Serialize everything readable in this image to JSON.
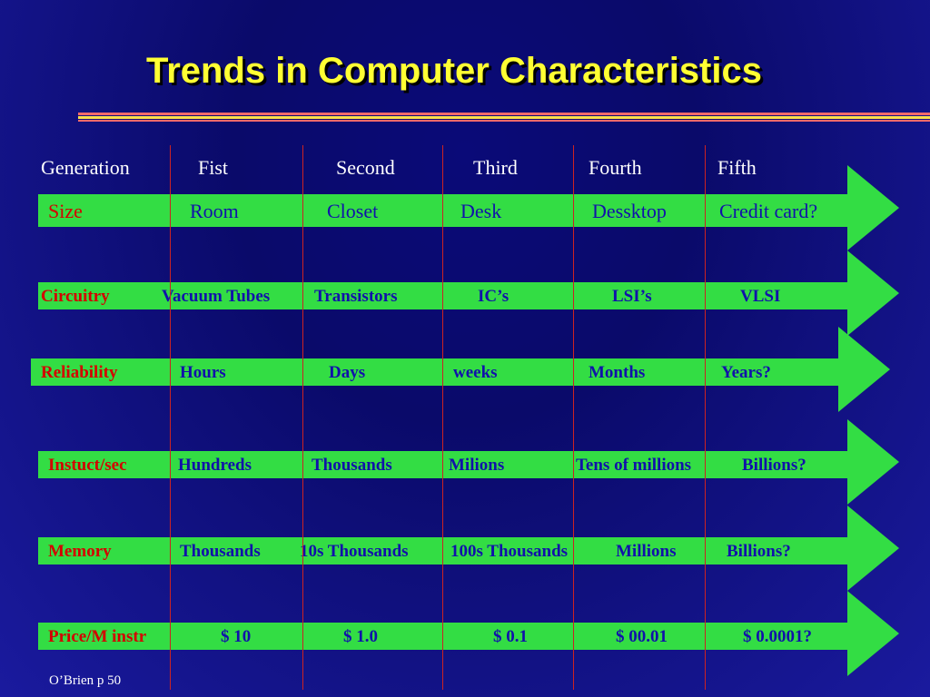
{
  "slide": {
    "title": "Trends in Computer Characteristics",
    "footer": "O’Brien p 50"
  },
  "header": {
    "generation": "Generation",
    "first": "Fist",
    "second": "Second",
    "third": "Third",
    "fourth": "Fourth",
    "fifth": "Fifth"
  },
  "rows": [
    {
      "label": "Size",
      "values": [
        "Room",
        "Closet",
        "Desk",
        "Dessktop",
        "Credit card?"
      ]
    },
    {
      "label": "Circuitry",
      "values": [
        "Vacuum Tubes",
        "Transistors",
        "IC’s",
        "LSI’s",
        "VLSI"
      ]
    },
    {
      "label": "Reliability",
      "values": [
        "Hours",
        "Days",
        "weeks",
        "Months",
        "Years?"
      ]
    },
    {
      "label": "Instuct/sec",
      "values": [
        "Hundreds",
        "Thousands",
        "Milions",
        "Tens of millions",
        "Billions?"
      ]
    },
    {
      "label": "Memory",
      "values": [
        "Thousands",
        "10s Thousands",
        "100s Thousands",
        "Millions",
        "Billions?"
      ]
    },
    {
      "label": "Price/M instr",
      "values": [
        "$ 10",
        "$  1.0",
        "$ 0.1",
        "$ 00.01",
        "$  0.0001?"
      ]
    }
  ],
  "colors": {
    "title": "#ffff33",
    "bar": "#33dd44",
    "label": "#d40000",
    "value": "#1111aa",
    "divider": "#cc2222"
  }
}
